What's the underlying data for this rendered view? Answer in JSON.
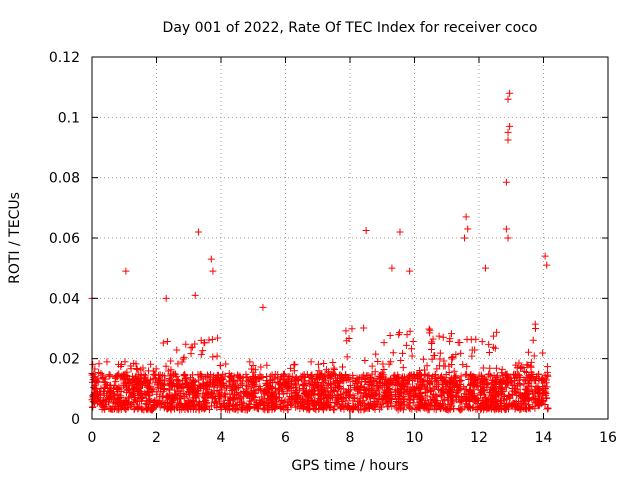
{
  "chart_data": {
    "type": "scatter",
    "title": "Day 001 of 2022, Rate Of TEC Index for receiver coco",
    "xlabel": "GPS time / hours",
    "ylabel": "ROTI / TECUs",
    "xlim": [
      0,
      16
    ],
    "ylim": [
      0,
      0.12
    ],
    "xticks": [
      0,
      2,
      4,
      6,
      8,
      10,
      12,
      14,
      16
    ],
    "yticks": [
      0,
      0.02,
      0.04,
      0.06,
      0.08,
      0.1,
      0.12
    ],
    "xtick_labels": [
      "0",
      "2",
      "4",
      "6",
      "8",
      "10",
      "12",
      "14",
      "16"
    ],
    "ytick_labels": [
      "0",
      "0.02",
      "0.04",
      "0.06",
      "0.08",
      "0.1",
      "0.12"
    ],
    "grid": true,
    "marker": "+",
    "color": "#ff0000",
    "x_range_of_data": [
      0.0,
      14.15
    ],
    "typical_band": [
      0.003,
      0.02
    ],
    "peaks": [
      {
        "x": 0.0,
        "y": 0.04
      },
      {
        "x": 1.05,
        "y": 0.049
      },
      {
        "x": 2.3,
        "y": 0.04
      },
      {
        "x": 3.2,
        "y": 0.041
      },
      {
        "x": 3.3,
        "y": 0.062
      },
      {
        "x": 3.7,
        "y": 0.053
      },
      {
        "x": 3.75,
        "y": 0.049
      },
      {
        "x": 5.3,
        "y": 0.037
      },
      {
        "x": 8.5,
        "y": 0.0625
      },
      {
        "x": 9.55,
        "y": 0.062
      },
      {
        "x": 9.3,
        "y": 0.05
      },
      {
        "x": 9.85,
        "y": 0.049
      },
      {
        "x": 11.6,
        "y": 0.067
      },
      {
        "x": 11.65,
        "y": 0.063
      },
      {
        "x": 11.55,
        "y": 0.06
      },
      {
        "x": 12.2,
        "y": 0.05
      },
      {
        "x": 12.9,
        "y": 0.106
      },
      {
        "x": 12.95,
        "y": 0.108
      },
      {
        "x": 12.9,
        "y": 0.095
      },
      {
        "x": 12.95,
        "y": 0.097
      },
      {
        "x": 12.9,
        "y": 0.0925
      },
      {
        "x": 12.85,
        "y": 0.0785
      },
      {
        "x": 12.85,
        "y": 0.063
      },
      {
        "x": 12.9,
        "y": 0.06
      },
      {
        "x": 14.05,
        "y": 0.054
      },
      {
        "x": 14.1,
        "y": 0.051
      }
    ]
  }
}
